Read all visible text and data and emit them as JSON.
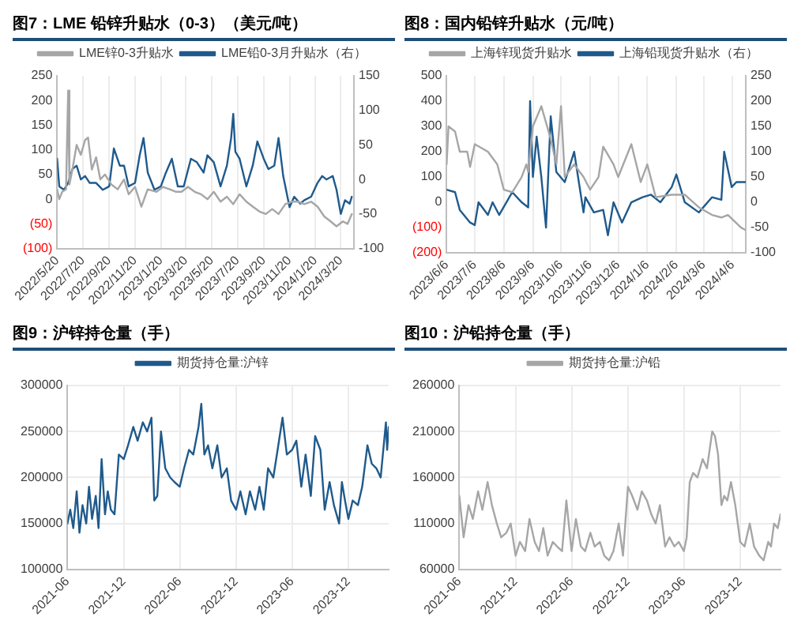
{
  "chart_data": [
    {
      "type": "line",
      "title": "图7：LME 铅锌升贴水（0-3）（美元/吨）",
      "legend": "top",
      "grid": "x",
      "marker": "none",
      "line_style": "solid",
      "xlim": [
        "2022-05-20",
        "2024-04-20"
      ],
      "xticks": [
        {
          "value": "2022-05-20",
          "label": "2022/5/20"
        },
        {
          "value": "2022-07-20",
          "label": "2022/7/20"
        },
        {
          "value": "2022-09-20",
          "label": "2022/9/20"
        },
        {
          "value": "2022-11-20",
          "label": "2022/11/20"
        },
        {
          "value": "2023-01-20",
          "label": "2023/1/20"
        },
        {
          "value": "2023-03-20",
          "label": "2023/3/20"
        },
        {
          "value": "2023-05-20",
          "label": "2023/5/20"
        },
        {
          "value": "2023-07-20",
          "label": "2023/7/20"
        },
        {
          "value": "2023-09-20",
          "label": "2023/9/20"
        },
        {
          "value": "2023-11-20",
          "label": "2023/11/20"
        },
        {
          "value": "2024-01-20",
          "label": "2024/1/20"
        },
        {
          "value": "2024-03-20",
          "label": "2024/3/20"
        }
      ],
      "ylim": [
        -100,
        250
      ],
      "yticks": [
        {
          "value": -100,
          "label": "(100)"
        },
        {
          "value": -50,
          "label": "(50)"
        },
        0,
        50,
        100,
        150,
        200,
        250
      ],
      "y2lim": [
        -100,
        150
      ],
      "y2ticks": [
        -100,
        -50,
        0,
        50,
        100,
        150
      ],
      "series": [
        {
          "name": "LME锌0-3升贴水",
          "color": "#a6a6a6",
          "x": [
            "2022-05-20",
            "2022-05-25",
            "2022-06-01",
            "2022-06-10",
            "2022-06-15",
            "2022-06-18",
            "2022-06-25",
            "2022-07-05",
            "2022-07-15",
            "2022-07-25",
            "2022-08-01",
            "2022-08-10",
            "2022-08-20",
            "2022-08-30",
            "2022-09-10",
            "2022-09-25",
            "2022-10-10",
            "2022-10-25",
            "2022-11-05",
            "2022-11-20",
            "2022-12-05",
            "2022-12-20",
            "2023-01-10",
            "2023-01-25",
            "2023-02-10",
            "2023-02-25",
            "2023-03-10",
            "2023-03-25",
            "2023-04-10",
            "2023-04-25",
            "2023-05-10",
            "2023-05-25",
            "2023-06-10",
            "2023-06-25",
            "2023-07-10",
            "2023-07-25",
            "2023-08-10",
            "2023-08-25",
            "2023-09-10",
            "2023-09-25",
            "2023-10-10",
            "2023-10-25",
            "2023-11-10",
            "2023-11-25",
            "2023-12-10",
            "2023-12-25",
            "2024-01-10",
            "2024-01-25",
            "2024-02-10",
            "2024-02-25",
            "2024-03-10",
            "2024-03-25",
            "2024-04-05",
            "2024-04-15"
          ],
          "values": [
            20,
            0,
            15,
            20,
            220,
            30,
            60,
            110,
            90,
            120,
            125,
            60,
            85,
            40,
            50,
            30,
            20,
            40,
            10,
            25,
            -15,
            20,
            15,
            25,
            20,
            15,
            15,
            25,
            15,
            10,
            0,
            15,
            -5,
            5,
            -10,
            10,
            -5,
            -15,
            -25,
            -30,
            -20,
            -30,
            -10,
            -5,
            -5,
            -10,
            -5,
            -15,
            -35,
            -45,
            -55,
            -45,
            -50,
            -30
          ]
        },
        {
          "name": "LME铅0-3月升贴水（右）",
          "color": "#1f5a8c",
          "axis": "y2",
          "x": [
            "2022-05-20",
            "2022-05-25",
            "2022-06-05",
            "2022-06-15",
            "2022-06-25",
            "2022-07-05",
            "2022-07-15",
            "2022-07-25",
            "2022-08-05",
            "2022-08-20",
            "2022-09-05",
            "2022-09-20",
            "2022-10-01",
            "2022-10-15",
            "2022-10-25",
            "2022-11-05",
            "2022-11-20",
            "2022-12-01",
            "2022-12-10",
            "2022-12-20",
            "2023-01-05",
            "2023-01-20",
            "2023-02-01",
            "2023-02-15",
            "2023-03-01",
            "2023-03-15",
            "2023-04-01",
            "2023-04-15",
            "2023-05-01",
            "2023-05-10",
            "2023-05-25",
            "2023-06-10",
            "2023-06-25",
            "2023-07-05",
            "2023-07-10",
            "2023-07-15",
            "2023-07-25",
            "2023-08-10",
            "2023-08-25",
            "2023-09-05",
            "2023-09-20",
            "2023-10-01",
            "2023-10-15",
            "2023-10-25",
            "2023-11-05",
            "2023-11-20",
            "2023-12-01",
            "2023-12-15",
            "2023-12-25",
            "2024-01-10",
            "2024-01-25",
            "2024-02-05",
            "2024-02-15",
            "2024-03-01",
            "2024-03-10",
            "2024-03-20",
            "2024-03-30",
            "2024-04-10",
            "2024-04-15"
          ],
          "values": [
            30,
            -10,
            -15,
            -5,
            15,
            20,
            0,
            5,
            -5,
            -5,
            -15,
            -10,
            45,
            20,
            20,
            -10,
            -5,
            35,
            60,
            10,
            -15,
            -10,
            10,
            30,
            -10,
            -10,
            30,
            25,
            10,
            35,
            25,
            -10,
            20,
            60,
            95,
            40,
            30,
            -10,
            20,
            55,
            30,
            15,
            20,
            60,
            5,
            -40,
            -25,
            -35,
            -30,
            -25,
            -5,
            5,
            0,
            5,
            -15,
            -50,
            -30,
            -35,
            -25
          ]
        }
      ]
    },
    {
      "type": "line",
      "title": "图8：国内铅锌升贴水（元/吨）",
      "legend": "top",
      "grid": "x",
      "marker": "none",
      "line_style": "solid",
      "xlim": [
        "2023-06-06",
        "2024-04-20"
      ],
      "xticks": [
        {
          "value": "2023-06-06",
          "label": "2023/6/6"
        },
        {
          "value": "2023-07-06",
          "label": "2023/7/6"
        },
        {
          "value": "2023-08-06",
          "label": "2023/8/6"
        },
        {
          "value": "2023-09-06",
          "label": "2023/9/6"
        },
        {
          "value": "2023-10-06",
          "label": "2023/10/6"
        },
        {
          "value": "2023-11-06",
          "label": "2023/11/6"
        },
        {
          "value": "2023-12-06",
          "label": "2023/12/6"
        },
        {
          "value": "2024-01-06",
          "label": "2024/1/6"
        },
        {
          "value": "2024-02-06",
          "label": "2024/2/6"
        },
        {
          "value": "2024-03-06",
          "label": "2024/3/6"
        },
        {
          "value": "2024-04-06",
          "label": "2024/4/6"
        }
      ],
      "ylim": [
        -200,
        500
      ],
      "yticks": [
        {
          "value": -200,
          "label": "(200)"
        },
        {
          "value": -100,
          "label": "(100)"
        },
        0,
        100,
        200,
        300,
        400,
        500
      ],
      "y2lim": [
        -100,
        250
      ],
      "y2ticks": [
        -100,
        -50,
        0,
        50,
        100,
        150,
        200,
        250
      ],
      "series": [
        {
          "name": "上海锌现货升贴水",
          "color": "#a6a6a6",
          "x": [
            "2023-06-06",
            "2023-06-08",
            "2023-06-15",
            "2023-06-20",
            "2023-06-28",
            "2023-07-01",
            "2023-07-06",
            "2023-07-20",
            "2023-07-30",
            "2023-08-06",
            "2023-08-15",
            "2023-08-25",
            "2023-08-30",
            "2023-09-01",
            "2023-09-06",
            "2023-09-15",
            "2023-09-25",
            "2023-10-01",
            "2023-10-06",
            "2023-10-10",
            "2023-10-20",
            "2023-10-30",
            "2023-11-06",
            "2023-11-15",
            "2023-11-20",
            "2023-12-01",
            "2023-12-06",
            "2023-12-20",
            "2023-12-30",
            "2024-01-06",
            "2024-01-15",
            "2024-02-01",
            "2024-02-15",
            "2024-03-01",
            "2024-03-15",
            "2024-03-25",
            "2024-04-01",
            "2024-04-15",
            "2024-04-20"
          ],
          "values": [
            150,
            300,
            280,
            200,
            200,
            140,
            230,
            200,
            150,
            50,
            40,
            100,
            150,
            120,
            300,
            380,
            250,
            150,
            380,
            100,
            150,
            100,
            50,
            100,
            220,
            150,
            100,
            230,
            80,
            150,
            20,
            30,
            30,
            -20,
            -50,
            -60,
            -50,
            -100,
            -110
          ]
        },
        {
          "name": "上海铅现货升贴水（右）",
          "color": "#1f5a8c",
          "axis": "y2",
          "x": [
            "2023-06-06",
            "2023-06-15",
            "2023-06-20",
            "2023-07-01",
            "2023-07-06",
            "2023-07-10",
            "2023-07-20",
            "2023-07-25",
            "2023-08-01",
            "2023-08-15",
            "2023-08-25",
            "2023-09-01",
            "2023-09-03",
            "2023-09-06",
            "2023-09-10",
            "2023-09-15",
            "2023-09-20",
            "2023-09-25",
            "2023-10-01",
            "2023-10-10",
            "2023-10-20",
            "2023-10-30",
            "2023-11-01",
            "2023-11-10",
            "2023-11-20",
            "2023-11-25",
            "2023-12-01",
            "2023-12-10",
            "2023-12-20",
            "2024-01-01",
            "2024-01-10",
            "2024-01-20",
            "2024-02-01",
            "2024-02-06",
            "2024-02-15",
            "2024-03-01",
            "2024-03-15",
            "2024-03-25",
            "2024-03-28",
            "2024-04-05",
            "2024-04-10",
            "2024-04-20"
          ],
          "values": [
            25,
            20,
            -15,
            -40,
            -45,
            0,
            -25,
            0,
            -25,
            20,
            0,
            -10,
            200,
            50,
            130,
            50,
            -50,
            170,
            60,
            40,
            100,
            -20,
            10,
            -20,
            -15,
            -65,
            0,
            -40,
            0,
            10,
            15,
            0,
            30,
            55,
            0,
            -20,
            10,
            5,
            100,
            30,
            40,
            40
          ]
        }
      ]
    },
    {
      "type": "line",
      "title": "图9：沪锌持仓量（手）",
      "legend": "top",
      "grid": true,
      "marker": "none",
      "line_style": "solid",
      "xlim": [
        "2021-06",
        "2024-04-10"
      ],
      "xticks": [
        {
          "value": "2021-06",
          "label": "2021-06"
        },
        {
          "value": "2021-12",
          "label": "2021-12"
        },
        {
          "value": "2022-06",
          "label": "2022-06"
        },
        {
          "value": "2022-12",
          "label": "2022-12"
        },
        {
          "value": "2023-06",
          "label": "2023-06"
        },
        {
          "value": "2023-12",
          "label": "2023-12"
        }
      ],
      "ylim": [
        100000,
        300000
      ],
      "yticks": [
        100000,
        150000,
        200000,
        250000,
        300000
      ],
      "series": [
        {
          "name": "期货持仓量:沪锌",
          "color": "#1f5a8c",
          "x": [
            "2021-06-01",
            "2021-06-10",
            "2021-06-20",
            "2021-07-01",
            "2021-07-10",
            "2021-07-20",
            "2021-08-01",
            "2021-08-10",
            "2021-08-20",
            "2021-09-01",
            "2021-09-10",
            "2021-09-20",
            "2021-10-01",
            "2021-10-10",
            "2021-10-20",
            "2021-11-01",
            "2021-11-15",
            "2021-12-01",
            "2021-12-15",
            "2022-01-01",
            "2022-01-15",
            "2022-02-01",
            "2022-02-15",
            "2022-03-01",
            "2022-03-10",
            "2022-03-20",
            "2022-04-01",
            "2022-04-15",
            "2022-05-01",
            "2022-05-15",
            "2022-06-01",
            "2022-06-15",
            "2022-07-01",
            "2022-07-15",
            "2022-08-01",
            "2022-08-10",
            "2022-08-20",
            "2022-09-01",
            "2022-09-15",
            "2022-10-01",
            "2022-10-15",
            "2022-11-01",
            "2022-11-15",
            "2022-12-01",
            "2022-12-15",
            "2023-01-01",
            "2023-01-15",
            "2023-02-01",
            "2023-02-15",
            "2023-03-01",
            "2023-03-15",
            "2023-04-01",
            "2023-04-15",
            "2023-05-01",
            "2023-05-15",
            "2023-06-01",
            "2023-06-15",
            "2023-07-01",
            "2023-07-15",
            "2023-08-01",
            "2023-08-15",
            "2023-09-01",
            "2023-09-15",
            "2023-10-01",
            "2023-10-15",
            "2023-11-01",
            "2023-11-10",
            "2023-11-20",
            "2023-12-01",
            "2023-12-15",
            "2024-01-01",
            "2024-01-15",
            "2024-02-01",
            "2024-02-15",
            "2024-03-01",
            "2024-03-15",
            "2024-04-01",
            "2024-04-05",
            "2024-04-10"
          ],
          "values": [
            150000,
            165000,
            145000,
            185000,
            140000,
            170000,
            150000,
            190000,
            155000,
            180000,
            145000,
            220000,
            160000,
            185000,
            165000,
            160000,
            225000,
            220000,
            235000,
            255000,
            240000,
            260000,
            250000,
            265000,
            175000,
            180000,
            250000,
            210000,
            200000,
            195000,
            190000,
            210000,
            230000,
            225000,
            255000,
            280000,
            225000,
            235000,
            210000,
            235000,
            200000,
            210000,
            175000,
            165000,
            185000,
            160000,
            185000,
            165000,
            190000,
            165000,
            210000,
            200000,
            230000,
            265000,
            225000,
            230000,
            240000,
            190000,
            225000,
            180000,
            245000,
            230000,
            165000,
            195000,
            170000,
            150000,
            195000,
            175000,
            155000,
            175000,
            170000,
            190000,
            235000,
            215000,
            210000,
            200000,
            260000,
            230000,
            255000
          ]
        }
      ]
    },
    {
      "type": "line",
      "title": "图10：沪铅持仓量（手）",
      "legend": "top",
      "grid": true,
      "marker": "none",
      "line_style": "solid",
      "xlim": [
        "2021-06",
        "2024-04-10"
      ],
      "xticks": [
        {
          "value": "2021-06",
          "label": "2021-06"
        },
        {
          "value": "2021-12",
          "label": "2021-12"
        },
        {
          "value": "2022-06",
          "label": "2022-06"
        },
        {
          "value": "2022-12",
          "label": "2022-12"
        },
        {
          "value": "2023-06",
          "label": "2023-06"
        },
        {
          "value": "2023-12",
          "label": "2023-12"
        }
      ],
      "ylim": [
        60000,
        260000
      ],
      "yticks": [
        60000,
        110000,
        160000,
        210000,
        260000
      ],
      "series": [
        {
          "name": "期货持仓量:沪铅",
          "color": "#a6a6a6",
          "x": [
            "2021-06-01",
            "2021-06-15",
            "2021-07-01",
            "2021-07-15",
            "2021-08-01",
            "2021-08-15",
            "2021-09-01",
            "2021-09-15",
            "2021-10-01",
            "2021-10-15",
            "2021-11-01",
            "2021-11-15",
            "2021-12-01",
            "2021-12-15",
            "2022-01-01",
            "2022-01-15",
            "2022-02-01",
            "2022-02-15",
            "2022-03-01",
            "2022-03-15",
            "2022-04-01",
            "2022-04-15",
            "2022-05-01",
            "2022-05-15",
            "2022-06-01",
            "2022-06-15",
            "2022-07-01",
            "2022-07-15",
            "2022-08-01",
            "2022-08-15",
            "2022-09-01",
            "2022-09-15",
            "2022-10-01",
            "2022-10-15",
            "2022-11-01",
            "2022-11-15",
            "2022-12-01",
            "2022-12-15",
            "2023-01-01",
            "2023-01-15",
            "2023-02-01",
            "2023-02-15",
            "2023-03-01",
            "2023-03-15",
            "2023-04-01",
            "2023-04-15",
            "2023-05-01",
            "2023-05-15",
            "2023-06-01",
            "2023-06-10",
            "2023-06-20",
            "2023-07-01",
            "2023-07-15",
            "2023-08-01",
            "2023-08-15",
            "2023-09-01",
            "2023-09-10",
            "2023-09-20",
            "2023-10-01",
            "2023-10-10",
            "2023-10-20",
            "2023-11-01",
            "2023-11-15",
            "2023-12-01",
            "2023-12-15",
            "2024-01-01",
            "2024-01-15",
            "2024-02-01",
            "2024-02-15",
            "2024-03-01",
            "2024-03-10",
            "2024-03-20",
            "2024-04-01",
            "2024-04-10"
          ],
          "values": [
            140000,
            95000,
            130000,
            115000,
            145000,
            125000,
            155000,
            130000,
            110000,
            95000,
            100000,
            110000,
            75000,
            90000,
            80000,
            115000,
            90000,
            80000,
            105000,
            75000,
            90000,
            85000,
            80000,
            135000,
            80000,
            115000,
            85000,
            80000,
            100000,
            85000,
            90000,
            75000,
            70000,
            80000,
            110000,
            75000,
            150000,
            140000,
            125000,
            145000,
            135000,
            120000,
            110000,
            130000,
            85000,
            95000,
            85000,
            90000,
            80000,
            95000,
            155000,
            165000,
            160000,
            180000,
            170000,
            210000,
            205000,
            185000,
            130000,
            140000,
            135000,
            155000,
            130000,
            90000,
            85000,
            110000,
            85000,
            75000,
            70000,
            90000,
            85000,
            110000,
            105000,
            120000
          ]
        }
      ]
    }
  ]
}
